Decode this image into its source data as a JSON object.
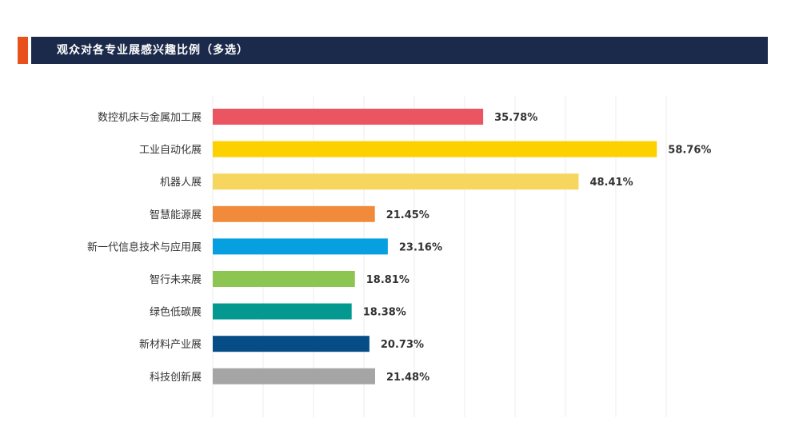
{
  "title": "观众对各专业展感兴趣比例（多选）",
  "colors": {
    "accent": "#e8511c",
    "title_bg": "#1b2a4a"
  },
  "chart_data": {
    "type": "bar",
    "orientation": "horizontal",
    "title": "观众对各专业展感兴趣比例（多选）",
    "unit": "%",
    "grid": true,
    "categories": [
      "数控机床与金属加工展",
      "工业自动化展",
      "机器人展",
      "智慧能源展",
      "新一代信息技术与应用展",
      "智行未来展",
      "绿色低碳展",
      "新材料产业展",
      "科技创新展"
    ],
    "values": [
      35.78,
      58.76,
      48.41,
      21.45,
      23.16,
      18.81,
      18.38,
      20.73,
      21.48
    ],
    "labels": [
      "35.78%",
      "58.76%",
      "48.41%",
      "21.45%",
      "23.16%",
      "18.81%",
      "18.38%",
      "20.73%",
      "21.48%"
    ],
    "colors": [
      "#eb5562",
      "#fdd000",
      "#f7d65f",
      "#f28a3b",
      "#069fe0",
      "#8dc553",
      "#049990",
      "#064c87",
      "#a5a5a5"
    ],
    "xlim": [
      0,
      60
    ]
  }
}
